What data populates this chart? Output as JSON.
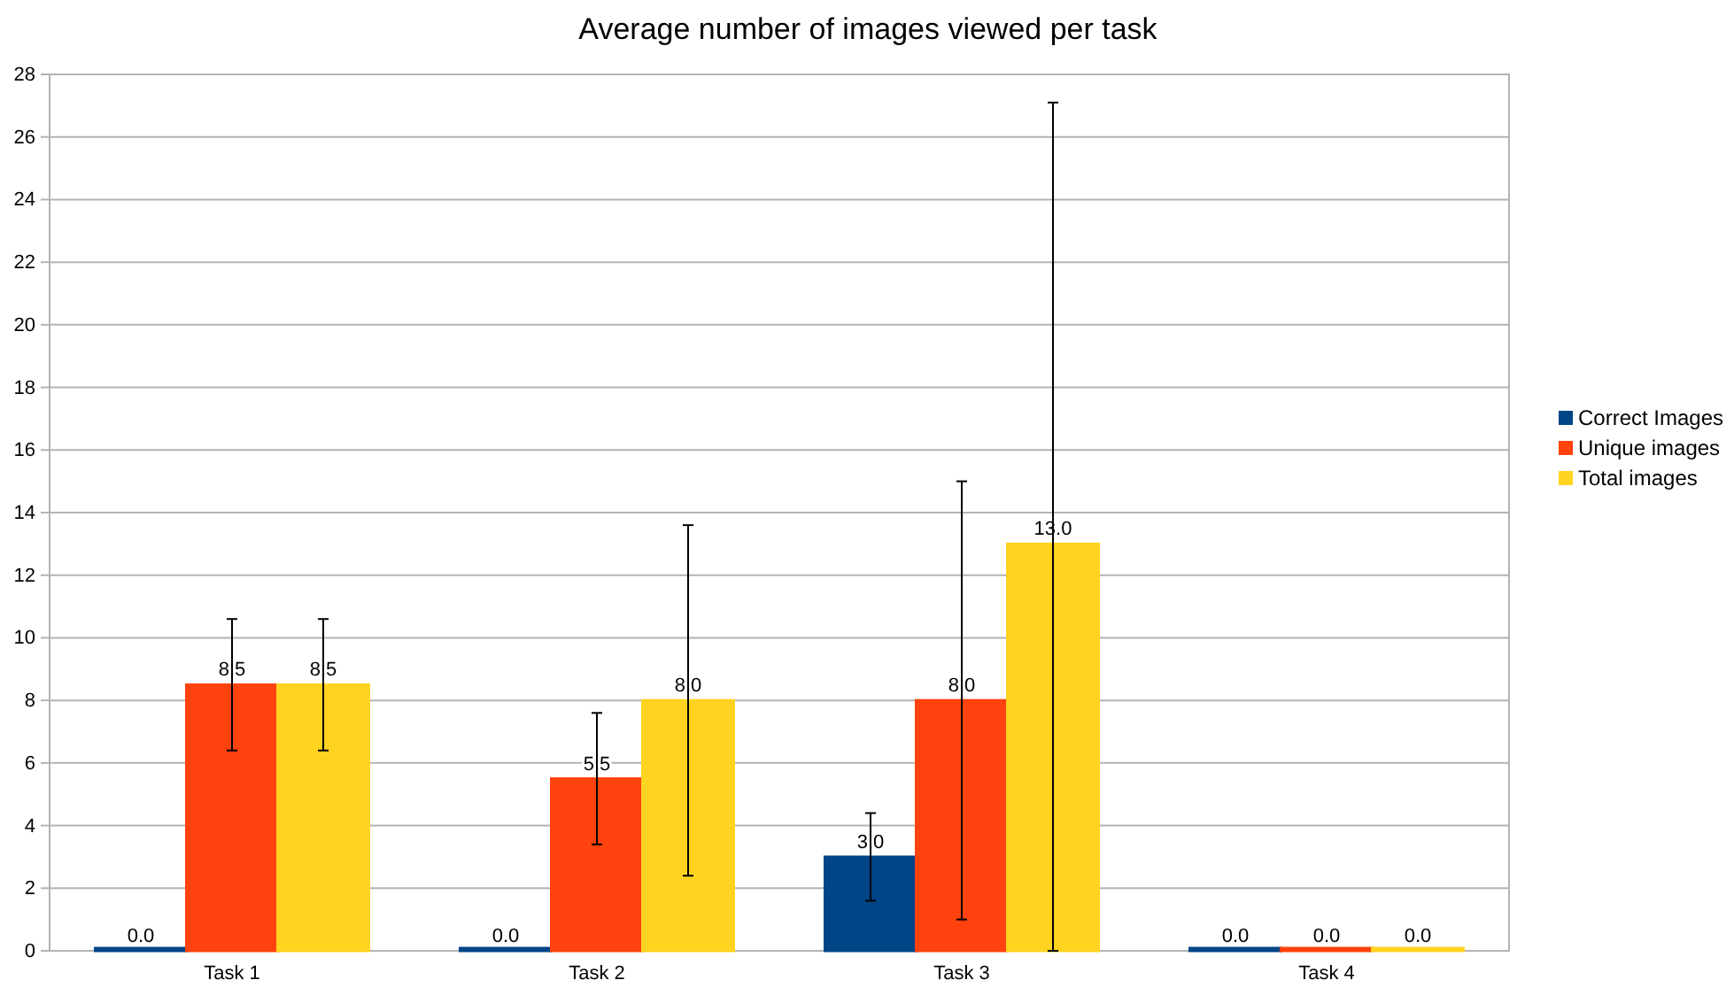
{
  "chart_data": {
    "type": "bar",
    "title": "Average number of images viewed per task",
    "categories": [
      "Task 1",
      "Task 2",
      "Task 3",
      "Task 4"
    ],
    "series": [
      {
        "name": "Correct Images",
        "color": "#004586",
        "values": [
          0,
          0,
          3.0,
          0
        ],
        "value_labels": [
          "0.0",
          "0.0",
          "3.0",
          "0.0"
        ],
        "errors": [
          null,
          null,
          [
            1.6,
            4.4
          ],
          null
        ]
      },
      {
        "name": "Unique images",
        "color": "#ff420e",
        "values": [
          8.5,
          5.5,
          8.0,
          0
        ],
        "value_labels": [
          "8.5",
          "5.5",
          "8.0",
          "0.0"
        ],
        "errors": [
          [
            6.4,
            10.6
          ],
          [
            3.4,
            7.6
          ],
          [
            1.0,
            15.0
          ],
          null
        ]
      },
      {
        "name": "Total images",
        "color": "#ffd320",
        "values": [
          8.5,
          8.0,
          13.0,
          0
        ],
        "value_labels": [
          "8.5",
          "8.0",
          "13.0",
          "0.0"
        ],
        "errors": [
          [
            6.4,
            10.6
          ],
          [
            2.4,
            13.6
          ],
          [
            0,
            27.1
          ],
          null
        ]
      }
    ],
    "ylim": [
      0,
      28
    ],
    "yticks": [
      0,
      2,
      4,
      6,
      8,
      10,
      12,
      14,
      16,
      18,
      20,
      22,
      24,
      26,
      28
    ],
    "grid": "y",
    "legend": "right"
  }
}
